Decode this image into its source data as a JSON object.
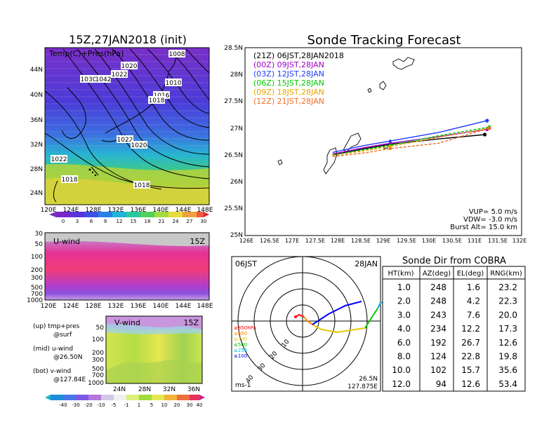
{
  "map_panel": {
    "title": "15Z,27JAN2018 (init)",
    "label": "Temp(C)+Pres(hPa)",
    "x_ticks": [
      "120E",
      "124E",
      "128E",
      "132E",
      "136E",
      "140E",
      "144E",
      "148E"
    ],
    "y_ticks": [
      "44N",
      "40N",
      "36N",
      "32N",
      "28N",
      "24N"
    ],
    "isobar_labels": [
      "1008",
      "1020",
      "1022",
      "1030",
      "1042",
      "1010",
      "1016",
      "1018",
      "1022",
      "1020",
      "1022",
      "1018",
      "1018"
    ],
    "colorbar_ticks": [
      "0",
      "3",
      "6",
      "9",
      "12",
      "15",
      "18",
      "21",
      "24",
      "27",
      "30"
    ]
  },
  "u_panel": {
    "label": "U-wind",
    "time": "15Z",
    "y_ticks": [
      "30",
      "50",
      "100",
      "200",
      "300",
      "500",
      "700",
      "1000"
    ],
    "x_ticks": [
      "120E",
      "124E",
      "128E",
      "132E",
      "136E",
      "140E",
      "144E",
      "148E"
    ]
  },
  "v_panel": {
    "label": "V-wind",
    "time": "15Z",
    "y_ticks": [
      "50",
      "100",
      "200",
      "300",
      "500",
      "700",
      "1000"
    ],
    "x_ticks": [
      "24N",
      "28N",
      "32N",
      "36N"
    ]
  },
  "legend_notes": {
    "up": "(up) tmp+pres",
    "up2": "@surf",
    "mid": "(mid) u-wind",
    "mid2": "@26.50N",
    "bot": "(bot) v-wind",
    "bot2": "@127.84E"
  },
  "wind_colorbar_ticks": [
    "-40",
    "-30",
    "-20",
    "-10",
    "-5",
    "-1",
    "1",
    "5",
    "10",
    "20",
    "30",
    "40"
  ],
  "track_panel": {
    "title": "Sonde Tracking Forecast",
    "x_ticks": [
      "126E",
      "126.5E",
      "127E",
      "127.5E",
      "128E",
      "128.5E",
      "129E",
      "129.5E",
      "130E",
      "130.5E",
      "131E",
      "131.5E",
      "132E"
    ],
    "y_ticks": [
      "28.5N",
      "28N",
      "27.5N",
      "27N",
      "26.5N",
      "26N",
      "25.5N",
      "25N"
    ],
    "launch_list": [
      {
        "text": "(21Z)  06JST,28JAN2018",
        "color": "#000000"
      },
      {
        "text": "(00Z)  09JST,28JAN",
        "color": "#a000c8"
      },
      {
        "text": "(03Z)  12JST,28JAN",
        "color": "#1e3cff"
      },
      {
        "text": "(06Z)  15JST,28JAN",
        "color": "#00c800"
      },
      {
        "text": "(09Z)  18JST,28JAN",
        "color": "#e6a500"
      },
      {
        "text": "(12Z)  21JST,28JAN",
        "color": "#f06e28"
      }
    ],
    "params": [
      "VUP=  5.0 m/s",
      "VDW= -3.0 m/s",
      "Burst Alt=  15.0 km"
    ]
  },
  "polar_panel": {
    "left_label": "06JST",
    "right_label": "28JAN",
    "ring_labels": [
      "10",
      "20",
      "30",
      "40"
    ],
    "pressure_legend": [
      {
        "text": "≥850hPa",
        "color": "#ff0000"
      },
      {
        "text": "≤850",
        "color": "#ff8c00"
      },
      {
        "text": "≤700",
        "color": "#e6c800"
      },
      {
        "text": "≤500",
        "color": "#00c800"
      },
      {
        "text": "≤250",
        "color": "#00b4e6"
      },
      {
        "text": "≤100",
        "color": "#0000ff"
      }
    ],
    "unit": "ms-1",
    "lat": "26.5N",
    "lon": "127.875E"
  },
  "table": {
    "title": "Sonde Dir from COBRA",
    "headers": [
      "HT(km)",
      "AZ(deg)",
      "EL(deg)",
      "RNG(km)"
    ],
    "rows": [
      [
        "1.0",
        "248",
        "1.6",
        "23.2"
      ],
      [
        "2.0",
        "248",
        "4.2",
        "22.3"
      ],
      [
        "3.0",
        "243",
        "7.6",
        "20.0"
      ],
      [
        "4.0",
        "234",
        "12.2",
        "17.3"
      ],
      [
        "6.0",
        "192",
        "26.7",
        "12.6"
      ],
      [
        "8.0",
        "124",
        "22.8",
        "19.8"
      ],
      [
        "10.0",
        "102",
        "15.7",
        "35.6"
      ],
      [
        "12.0",
        "94",
        "12.6",
        "53.4"
      ]
    ]
  },
  "chart_data": [
    {
      "type": "line",
      "title": "Sonde Tracking Forecast",
      "xlabel": "",
      "ylabel": "",
      "xlim": [
        126,
        132
      ],
      "ylim": [
        25,
        28.5
      ],
      "series": [
        {
          "name": "(21Z)  06JST,28JAN2018",
          "color": "#000000",
          "x": [
            127.9,
            128.6,
            129.15,
            130.2,
            131.2
          ],
          "y": [
            26.5,
            26.62,
            26.7,
            26.8,
            26.88
          ]
        },
        {
          "name": "(00Z)  09JST,28JAN",
          "color": "#a000c8",
          "x": [
            127.9,
            128.6,
            129.15,
            130.2,
            131.25
          ],
          "y": [
            26.52,
            26.64,
            26.72,
            26.84,
            26.98
          ]
        },
        {
          "name": "(03Z)  12JST,28JAN",
          "color": "#1e3cff",
          "x": [
            127.9,
            128.6,
            129.15,
            130.2,
            131.25
          ],
          "y": [
            26.55,
            26.68,
            26.76,
            26.92,
            27.14
          ]
        },
        {
          "name": "(06Z)  15JST,28JAN",
          "color": "#00c800",
          "x": [
            127.9,
            128.6,
            129.15,
            130.2,
            131.3
          ],
          "y": [
            26.5,
            26.6,
            26.68,
            26.86,
            27.02
          ]
        },
        {
          "name": "(09Z)  18JST,28JAN",
          "color": "#e6a500",
          "x": [
            127.9,
            128.6,
            129.15,
            130.2,
            131.3
          ],
          "y": [
            26.49,
            26.58,
            26.66,
            26.83,
            27.0
          ]
        },
        {
          "name": "(12Z)  21JST,28JAN",
          "color": "#f06e28",
          "x": [
            127.9,
            128.6,
            129.15,
            130.2,
            131.3
          ],
          "y": [
            26.47,
            26.54,
            26.62,
            26.72,
            27.0
          ]
        }
      ]
    },
    {
      "type": "table",
      "title": "Sonde Dir from COBRA",
      "columns": [
        "HT(km)",
        "AZ(deg)",
        "EL(deg)",
        "RNG(km)"
      ],
      "rows": [
        [
          1.0,
          248,
          1.6,
          23.2
        ],
        [
          2.0,
          248,
          4.2,
          22.3
        ],
        [
          3.0,
          243,
          7.6,
          20.0
        ],
        [
          4.0,
          234,
          12.2,
          17.3
        ],
        [
          6.0,
          192,
          26.7,
          12.6
        ],
        [
          8.0,
          124,
          22.8,
          19.8
        ],
        [
          10.0,
          102,
          15.7,
          35.6
        ],
        [
          12.0,
          94,
          12.6,
          53.4
        ]
      ]
    }
  ]
}
